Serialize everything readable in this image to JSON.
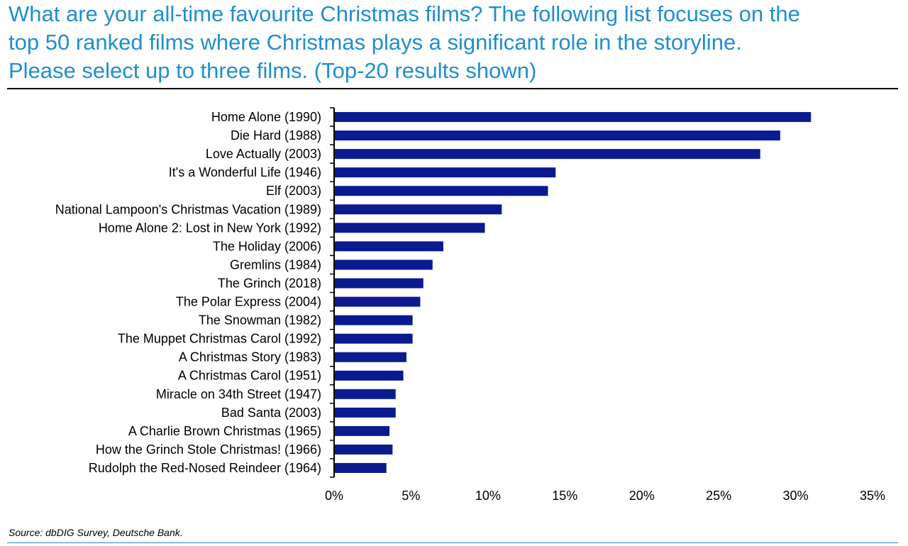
{
  "title_lines": [
    "What are your all-time favourite Christmas films? The following list focuses on the",
    "top 50 ranked films where Christmas plays a significant role in the storyline.",
    "Please select up to three films. (Top-20 results shown)"
  ],
  "source": "Source: dbDIG Survey, Deutsche Bank.",
  "colors": {
    "bar": "#0c1a8f",
    "title": "#1f8fd0",
    "axis": "#000000"
  },
  "chart_data": {
    "type": "bar",
    "orientation": "horizontal",
    "title": "What are your all-time favourite Christmas films? The following list focuses on the top 50 ranked films where Christmas plays a significant role in the storyline. Please select up to three films. (Top-20 results shown)",
    "xlabel": "",
    "ylabel": "",
    "xlim": [
      0,
      35
    ],
    "ticks": [
      0,
      5,
      10,
      15,
      20,
      25,
      30,
      35
    ],
    "tick_labels": [
      "0%",
      "5%",
      "10%",
      "15%",
      "20%",
      "25%",
      "30%",
      "35%"
    ],
    "grid": false,
    "categories": [
      "Home Alone (1990)",
      "Die Hard (1988)",
      "Love Actually (2003)",
      "It's a Wonderful Life (1946)",
      "Elf (2003)",
      "National Lampoon's Christmas Vacation (1989)",
      "Home Alone 2: Lost in New York (1992)",
      "The Holiday (2006)",
      "Gremlins (1984)",
      "The Grinch (2018)",
      "The Polar Express (2004)",
      "The Snowman (1982)",
      "The Muppet Christmas Carol (1992)",
      "A Christmas Story (1983)",
      "A Christmas Carol (1951)",
      "Miracle on 34th Street (1947)",
      "Bad Santa (2003)",
      "A Charlie Brown Christmas (1965)",
      "How the Grinch Stole Christmas! (1966)",
      "Rudolph the Red-Nosed Reindeer (1964)"
    ],
    "values": [
      31.0,
      29.0,
      27.7,
      14.4,
      13.9,
      10.9,
      9.8,
      7.1,
      6.4,
      5.8,
      5.6,
      5.1,
      5.1,
      4.7,
      4.5,
      4.0,
      4.0,
      3.6,
      3.8,
      3.4
    ]
  }
}
